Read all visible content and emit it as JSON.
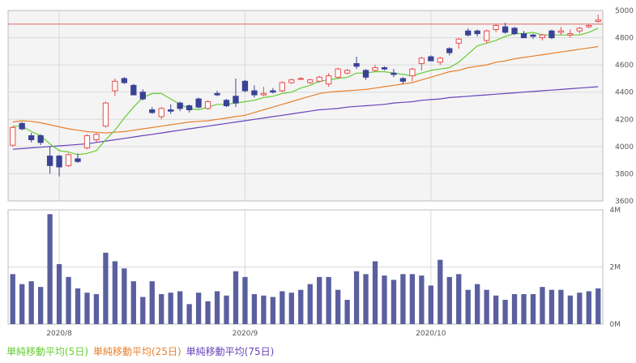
{
  "chart_data": [
    {
      "type": "candlestick",
      "ylim": [
        3600,
        5000
      ],
      "yticks": [
        3600,
        3800,
        4000,
        4200,
        4400,
        4600,
        4800,
        5000
      ],
      "reference_line": 4900,
      "colors": {
        "up": "#e84c4c",
        "down": "#3a4296",
        "ma5": "#66cc33",
        "ma25": "#e8802c",
        "ma75": "#6644bb",
        "ref": "#e06666"
      },
      "candles": [
        [
          4010,
          4150,
          4000,
          4140
        ],
        [
          4170,
          4180,
          4120,
          4130
        ],
        [
          4080,
          4100,
          4030,
          4050
        ],
        [
          4080,
          4090,
          4010,
          4030
        ],
        [
          3930,
          4000,
          3800,
          3860
        ],
        [
          3930,
          3940,
          3780,
          3850
        ],
        [
          3860,
          3950,
          3850,
          3940
        ],
        [
          3910,
          3950,
          3880,
          3890
        ],
        [
          3990,
          4090,
          3980,
          4080
        ],
        [
          4050,
          4100,
          4030,
          4090
        ],
        [
          4150,
          4330,
          4140,
          4320
        ],
        [
          4410,
          4500,
          4370,
          4480
        ],
        [
          4500,
          4510,
          4460,
          4470
        ],
        [
          4450,
          4460,
          4380,
          4380
        ],
        [
          4400,
          4420,
          4340,
          4350
        ],
        [
          4270,
          4290,
          4240,
          4250
        ],
        [
          4220,
          4290,
          4200,
          4280
        ],
        [
          4270,
          4310,
          4240,
          4260
        ],
        [
          4320,
          4330,
          4260,
          4280
        ],
        [
          4300,
          4310,
          4250,
          4270
        ],
        [
          4350,
          4360,
          4280,
          4290
        ],
        [
          4280,
          4340,
          4270,
          4330
        ],
        [
          4390,
          4410,
          4370,
          4380
        ],
        [
          4340,
          4350,
          4290,
          4300
        ],
        [
          4370,
          4500,
          4290,
          4320
        ],
        [
          4480,
          4490,
          4400,
          4410
        ],
        [
          4410,
          4450,
          4360,
          4380
        ],
        [
          4380,
          4440,
          4370,
          4390
        ],
        [
          4410,
          4430,
          4390,
          4400
        ],
        [
          4410,
          4480,
          4400,
          4470
        ],
        [
          4470,
          4500,
          4460,
          4490
        ],
        [
          4500,
          4510,
          4490,
          4500
        ],
        [
          4470,
          4500,
          4460,
          4490
        ],
        [
          4480,
          4520,
          4470,
          4510
        ],
        [
          4460,
          4540,
          4440,
          4520
        ],
        [
          4510,
          4580,
          4500,
          4570
        ],
        [
          4540,
          4570,
          4530,
          4560
        ],
        [
          4610,
          4660,
          4570,
          4590
        ],
        [
          4560,
          4570,
          4490,
          4510
        ],
        [
          4560,
          4600,
          4550,
          4580
        ],
        [
          4580,
          4590,
          4560,
          4570
        ],
        [
          4540,
          4570,
          4510,
          4530
        ],
        [
          4500,
          4510,
          4460,
          4480
        ],
        [
          4520,
          4580,
          4480,
          4570
        ],
        [
          4610,
          4660,
          4560,
          4650
        ],
        [
          4660,
          4670,
          4630,
          4630
        ],
        [
          4620,
          4660,
          4600,
          4650
        ],
        [
          4720,
          4730,
          4670,
          4690
        ],
        [
          4760,
          4800,
          4720,
          4790
        ],
        [
          4850,
          4870,
          4810,
          4820
        ],
        [
          4850,
          4860,
          4810,
          4830
        ],
        [
          4780,
          4860,
          4760,
          4850
        ],
        [
          4860,
          4900,
          4840,
          4890
        ],
        [
          4880,
          4910,
          4830,
          4840
        ],
        [
          4870,
          4880,
          4820,
          4830
        ],
        [
          4830,
          4850,
          4800,
          4800
        ],
        [
          4820,
          4830,
          4790,
          4810
        ],
        [
          4800,
          4830,
          4780,
          4820
        ],
        [
          4850,
          4860,
          4790,
          4800
        ],
        [
          4840,
          4880,
          4820,
          4850
        ],
        [
          4820,
          4860,
          4800,
          4830
        ],
        [
          4850,
          4880,
          4830,
          4870
        ],
        [
          4880,
          4900,
          4870,
          4890
        ],
        [
          4920,
          4970,
          4910,
          4930
        ]
      ],
      "ma5": [
        4150,
        4150,
        4110,
        4080,
        4020,
        3970,
        3960,
        3940,
        3950,
        3970,
        4050,
        4120,
        4210,
        4290,
        4360,
        4390,
        4390,
        4350,
        4310,
        4280,
        4270,
        4290,
        4310,
        4310,
        4320,
        4330,
        4340,
        4360,
        4370,
        4390,
        4400,
        4430,
        4450,
        4480,
        4490,
        4500,
        4510,
        4540,
        4540,
        4550,
        4550,
        4540,
        4530,
        4520,
        4540,
        4560,
        4570,
        4580,
        4620,
        4680,
        4740,
        4760,
        4780,
        4810,
        4830,
        4830,
        4840,
        4820,
        4820,
        4820,
        4820,
        4820,
        4840,
        4870
      ],
      "ma25": [
        4180,
        4190,
        4185,
        4175,
        4160,
        4145,
        4130,
        4120,
        4110,
        4105,
        4100,
        4105,
        4110,
        4120,
        4130,
        4140,
        4150,
        4160,
        4170,
        4180,
        4185,
        4190,
        4200,
        4210,
        4220,
        4230,
        4250,
        4270,
        4290,
        4310,
        4330,
        4350,
        4370,
        4390,
        4400,
        4405,
        4410,
        4415,
        4420,
        4430,
        4440,
        4450,
        4460,
        4470,
        4490,
        4510,
        4530,
        4550,
        4560,
        4580,
        4590,
        4600,
        4620,
        4630,
        4645,
        4655,
        4665,
        4675,
        4685,
        4695,
        4705,
        4715,
        4725,
        4735
      ],
      "ma75": [
        3980,
        3985,
        3990,
        3995,
        4000,
        4005,
        4010,
        4015,
        4020,
        4030,
        4040,
        4050,
        4060,
        4070,
        4080,
        4090,
        4100,
        4110,
        4120,
        4130,
        4140,
        4150,
        4160,
        4170,
        4180,
        4190,
        4200,
        4210,
        4220,
        4230,
        4240,
        4250,
        4260,
        4270,
        4275,
        4280,
        4290,
        4295,
        4300,
        4305,
        4310,
        4320,
        4325,
        4330,
        4340,
        4345,
        4350,
        4360,
        4365,
        4370,
        4375,
        4380,
        4385,
        4390,
        4395,
        4400,
        4405,
        4410,
        4415,
        4420,
        4425,
        4430,
        4435,
        4440
      ]
    },
    {
      "type": "bar",
      "ylim": [
        0,
        4000000
      ],
      "yticks": [
        0,
        2000000,
        4000000
      ],
      "ytick_labels": [
        "0M",
        "2M",
        "4M"
      ],
      "color": "#5a5f9f",
      "values": [
        1750000,
        1400000,
        1500000,
        1300000,
        3850000,
        2100000,
        1650000,
        1250000,
        1100000,
        1050000,
        2500000,
        2200000,
        1950000,
        1500000,
        950000,
        1500000,
        1050000,
        1100000,
        1150000,
        700000,
        1100000,
        800000,
        1150000,
        1000000,
        1850000,
        1650000,
        1050000,
        1000000,
        950000,
        1150000,
        1100000,
        1200000,
        1400000,
        1650000,
        1650000,
        1200000,
        850000,
        1850000,
        1750000,
        2200000,
        1700000,
        1550000,
        1750000,
        1750000,
        1700000,
        1350000,
        2250000,
        1650000,
        1750000,
        1200000,
        1400000,
        1200000,
        1000000,
        850000,
        1050000,
        1050000,
        1050000,
        1300000,
        1200000,
        1200000,
        1000000,
        1100000,
        1150000,
        1250000
      ]
    }
  ],
  "xaxis": {
    "labels": [
      {
        "text": "2020/8",
        "index": 5
      },
      {
        "text": "2020/9",
        "index": 25
      },
      {
        "text": "2020/10",
        "index": 45
      }
    ]
  },
  "legend": [
    {
      "label": "単純移動平均(5日)",
      "color": "#66cc33"
    },
    {
      "label": "単純移動平均(25日)",
      "color": "#e8802c"
    },
    {
      "label": "単純移動平均(75日)",
      "color": "#6644bb"
    }
  ]
}
